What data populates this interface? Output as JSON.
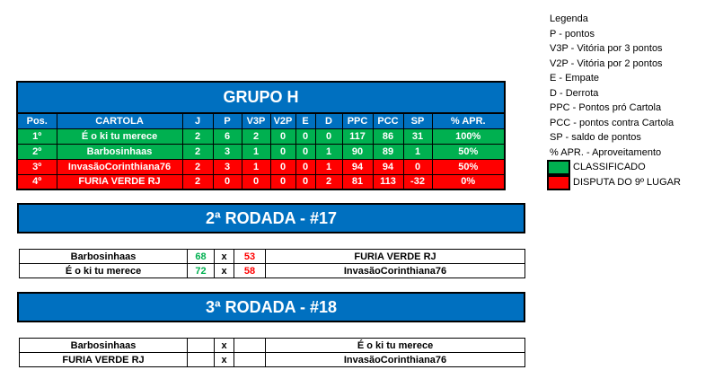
{
  "group": {
    "title": "GRUPO H",
    "headers": [
      "Pos.",
      "CARTOLA",
      "J",
      "P",
      "V3P",
      "V2P",
      "E",
      "D",
      "PPC",
      "PCC",
      "SP",
      "% APR."
    ],
    "rows": [
      {
        "status": "classified",
        "cells": [
          "1º",
          "É o ki tu merece",
          "2",
          "6",
          "2",
          "0",
          "0",
          "0",
          "117",
          "86",
          "31",
          "100%"
        ]
      },
      {
        "status": "classified",
        "cells": [
          "2º",
          "Barbosinhaas",
          "2",
          "3",
          "1",
          "0",
          "0",
          "1",
          "90",
          "89",
          "1",
          "50%"
        ]
      },
      {
        "status": "dispute",
        "cells": [
          "3º",
          "InvasãoCorinthiana76",
          "2",
          "3",
          "1",
          "0",
          "0",
          "1",
          "94",
          "94",
          "0",
          "50%"
        ]
      },
      {
        "status": "dispute",
        "cells": [
          "4º",
          "FURIA VERDE RJ",
          "2",
          "0",
          "0",
          "0",
          "0",
          "2",
          "81",
          "113",
          "-32",
          "0%"
        ]
      }
    ]
  },
  "rounds": [
    {
      "title": "2ª RODADA - #17",
      "matches": [
        {
          "home": "Barbosinhaas",
          "home_score": "68",
          "sep": "x",
          "away_score": "53",
          "away": "FURIA VERDE RJ"
        },
        {
          "home": "É o ki tu merece",
          "home_score": "72",
          "sep": "x",
          "away_score": "58",
          "away": "InvasãoCorinthiana76"
        }
      ]
    },
    {
      "title": "3ª RODADA - #18",
      "matches": [
        {
          "home": "Barbosinhaas",
          "home_score": "",
          "sep": "x",
          "away_score": "",
          "away": "É o ki tu merece"
        },
        {
          "home": "FURIA VERDE RJ",
          "home_score": "",
          "sep": "x",
          "away_score": "",
          "away": "InvasãoCorinthiana76"
        }
      ]
    }
  ],
  "legend": {
    "lines": [
      "Legenda",
      "P - pontos",
      "V3P - Vitória por 3 pontos",
      "V2P - Vitória por 2 pontos",
      "E - Empate",
      "D - Derrota",
      "PPC - Pontos pró Cartola",
      "PCC - pontos contra Cartola",
      "SP - saldo de pontos",
      "% APR. - Aproveitamento"
    ],
    "classified": "CLASSIFICADO",
    "dispute": "DISPUTA DO 9º LUGAR"
  },
  "colors": {
    "blue": "#0070c0",
    "green": "#00b050",
    "red": "#ff0000"
  }
}
